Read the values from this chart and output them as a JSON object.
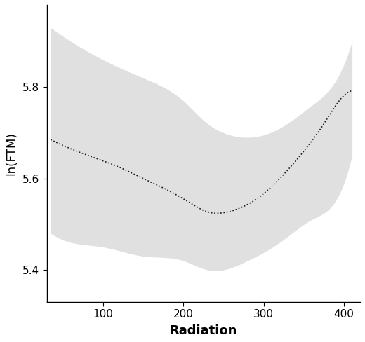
{
  "title": "",
  "xlabel": "Radiation",
  "ylabel": "ln(FTM)",
  "xlim": [
    30,
    420
  ],
  "ylim": [
    5.33,
    5.98
  ],
  "xticks": [
    100,
    200,
    300,
    400
  ],
  "yticks": [
    5.4,
    5.6,
    5.8
  ],
  "line_color": "#1a1a1a",
  "ci_color": "#d3d3d3",
  "ci_alpha": 0.7,
  "background_color": "#ffffff",
  "spine_color": "#000000",
  "x_start": 35,
  "x_end": 410
}
